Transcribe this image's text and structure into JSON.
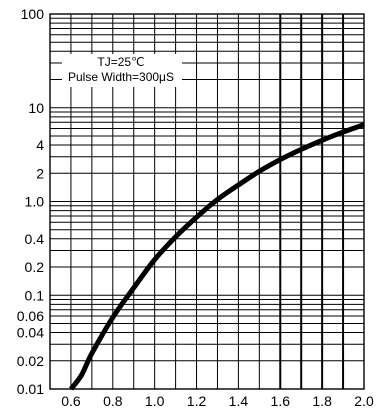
{
  "chart_data": {
    "type": "line",
    "title": "",
    "xlabel": "",
    "ylabel": "",
    "xlim": [
      0.5,
      2.0
    ],
    "ylim": [
      0.01,
      100
    ],
    "yscale": "log",
    "grid": true,
    "x_ticks": [
      0.6,
      0.8,
      1.0,
      1.2,
      1.4,
      1.6,
      1.8,
      2.0
    ],
    "x_tick_labels": [
      "0.6",
      "0.8",
      "1.0",
      "1.2",
      "1.4",
      "1.6",
      "1.8",
      "2.0"
    ],
    "y_ticks": [
      0.01,
      0.02,
      0.04,
      0.06,
      0.1,
      0.2,
      0.4,
      1,
      2,
      4,
      10,
      100
    ],
    "y_tick_labels": [
      "0.01",
      "0.02",
      "0.04",
      "0.06",
      "0.1",
      "0.2",
      "0.4",
      "1.0",
      "2",
      "4",
      "10",
      "100"
    ],
    "annotation": {
      "line1": "TJ=25℃",
      "line2": "Pulse Width=300μS"
    },
    "series": [
      {
        "x": [
          0.6,
          0.65,
          0.7,
          0.8,
          0.9,
          1.0,
          1.1,
          1.2,
          1.3,
          1.4,
          1.5,
          1.6,
          1.7,
          1.8,
          1.9,
          2.0
        ],
        "values": [
          0.01,
          0.014,
          0.024,
          0.058,
          0.12,
          0.24,
          0.42,
          0.68,
          1.05,
          1.5,
          2.1,
          2.8,
          3.6,
          4.5,
          5.5,
          6.6
        ]
      }
    ]
  }
}
